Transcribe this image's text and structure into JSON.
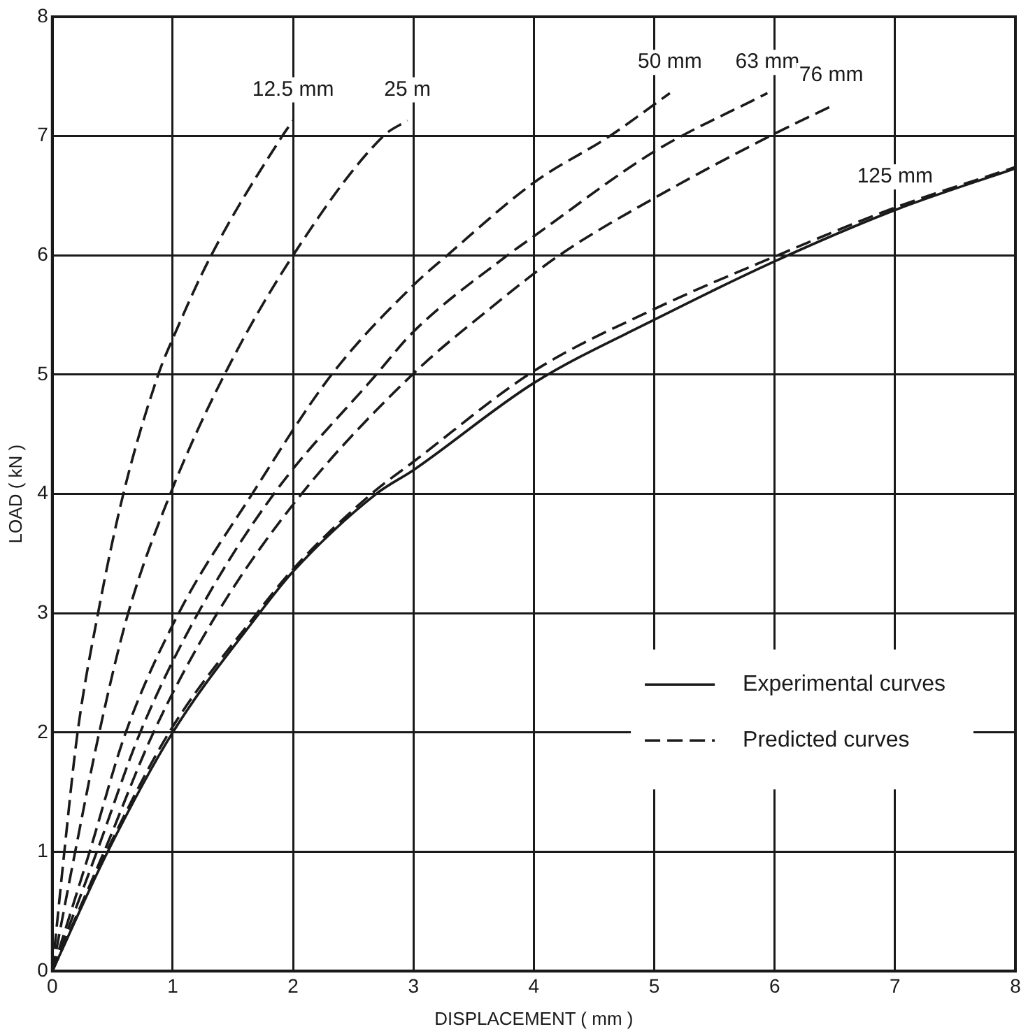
{
  "chart_data": {
    "type": "line",
    "xlabel": "DISPLACEMENT ( mm )",
    "ylabel": "LOAD ( kN )",
    "xlim": [
      0,
      8
    ],
    "xticks": [
      0,
      1,
      2,
      3,
      4,
      5,
      6,
      7,
      8
    ],
    "ylim": [
      0,
      8
    ],
    "yticks": [
      0,
      1,
      2,
      3,
      4,
      5,
      6,
      7,
      8
    ],
    "grid": true,
    "legend": "bottom right",
    "marker": "none",
    "series": [
      {
        "name": "Experimental curves",
        "color": "#1a1a1a",
        "line_style": "solid",
        "x": [
          0,
          0.46,
          1,
          1.72,
          2,
          2.69,
          3,
          4,
          5,
          6,
          7,
          8
        ],
        "values": [
          0,
          1,
          2,
          3,
          3.35,
          4,
          4.2,
          4.93,
          5.46,
          5.95,
          6.38,
          6.73
        ]
      },
      {
        "name": "Predicted curves",
        "color": "#1a1a1a",
        "line_style": "dashed",
        "x": [
          0,
          0.45,
          0.97,
          1.7,
          2,
          2.65,
          3,
          4,
          5,
          6,
          7,
          8
        ],
        "values": [
          0,
          1,
          2,
          3,
          3.37,
          4,
          4.27,
          5.03,
          5.55,
          5.99,
          6.4,
          6.74
        ]
      },
      {
        "color": "#1a1a1a",
        "line_style": "dashed",
        "x": [
          0,
          0.1,
          0.21,
          0.38,
          0.59,
          0.88,
          1,
          1.32,
          1.91,
          2.0
        ],
        "values": [
          0,
          1,
          2,
          3,
          4,
          5,
          5.3,
          6,
          7,
          7.13
        ]
      },
      {
        "color": "#1a1a1a",
        "line_style": "dashed",
        "x": [
          0,
          0.19,
          0.39,
          0.63,
          0.98,
          1.43,
          2,
          2.75,
          2.95
        ],
        "values": [
          0,
          1,
          2,
          3,
          4,
          5,
          6,
          7,
          7.13
        ]
      },
      {
        "color": "#1a1a1a",
        "line_style": "dashed",
        "x": [
          0,
          0.31,
          0.61,
          1.05,
          1.66,
          2.32,
          3,
          3.28,
          4,
          4.63,
          5.13
        ],
        "values": [
          0,
          1,
          2,
          3,
          4,
          5,
          5.75,
          6,
          6.61,
          7,
          7.36
        ]
      },
      {
        "color": "#1a1a1a",
        "line_style": "dashed",
        "x": [
          0,
          0.37,
          0.73,
          1.21,
          1.84,
          2.69,
          3,
          3.78,
          4,
          5,
          5.94
        ],
        "values": [
          0,
          1,
          2,
          3,
          4,
          5,
          5.36,
          6,
          6.16,
          6.87,
          7.36
        ]
      },
      {
        "color": "#1a1a1a",
        "line_style": "dashed",
        "x": [
          0,
          0.43,
          0.84,
          1.37,
          2.07,
          2.99,
          3.63,
          4.21,
          5,
          6,
          6.47
        ],
        "values": [
          0,
          1,
          2,
          3,
          4,
          5,
          5.55,
          6,
          6.48,
          7.02,
          7.25
        ]
      }
    ],
    "annotations": [
      {
        "text": "12.5 mm",
        "x": 2.0,
        "y": 7.13
      },
      {
        "text": "25 m",
        "x": 2.95,
        "y": 7.13
      },
      {
        "text": "50 mm",
        "x": 5.13,
        "y": 7.36
      },
      {
        "text": "63 mm",
        "x": 5.94,
        "y": 7.36
      },
      {
        "text": "76 mm",
        "x": 6.47,
        "y": 7.25
      },
      {
        "text": "125 mm",
        "x": 7,
        "y": 6.4
      }
    ]
  }
}
